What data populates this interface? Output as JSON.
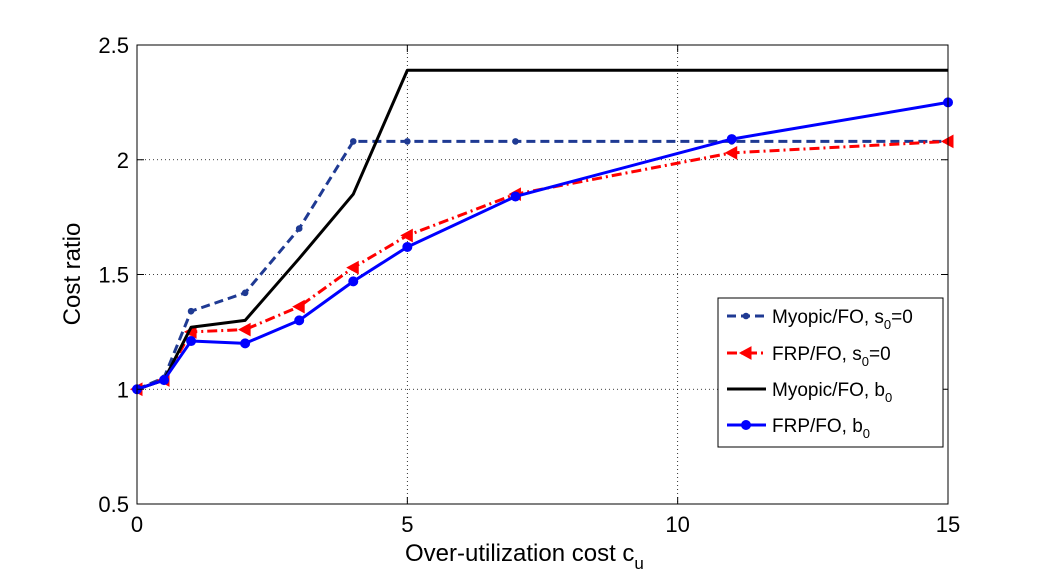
{
  "chart_data": {
    "type": "line",
    "title": "",
    "xlabel": "Over-utilization cost c",
    "xlabel_subscript": "u",
    "ylabel": "Cost ratio",
    "xlim": [
      0,
      15
    ],
    "ylim": [
      0.5,
      2.5
    ],
    "xticks": [
      0,
      5,
      10,
      15
    ],
    "yticks": [
      0.5,
      1,
      1.5,
      2,
      2.5
    ],
    "xtick_labels": [
      "0",
      "5",
      "10",
      "15"
    ],
    "ytick_labels": [
      "0.5",
      "1",
      "1.5",
      "2",
      "2.5"
    ],
    "grid": true,
    "legend_position": "right",
    "series": [
      {
        "name": "Myopic/FO, s",
        "name_subscript": "0",
        "name_suffix": "=0",
        "color": "#1f3a93",
        "line_style": "dashed",
        "marker": "dot",
        "x": [
          0,
          0.5,
          1,
          2,
          3,
          4,
          5,
          7,
          11,
          15
        ],
        "y": [
          1.0,
          1.05,
          1.34,
          1.42,
          1.7,
          2.08,
          2.08,
          2.08,
          2.08,
          2.08
        ]
      },
      {
        "name": "FRP/FO, s",
        "name_subscript": "0",
        "name_suffix": "=0",
        "color": "#ff0000",
        "line_style": "dashdot",
        "marker": "left-triangle",
        "x": [
          0,
          0.5,
          1,
          2,
          3,
          4,
          5,
          7,
          11,
          15
        ],
        "y": [
          1.0,
          1.04,
          1.25,
          1.26,
          1.36,
          1.53,
          1.67,
          1.85,
          2.03,
          2.08
        ]
      },
      {
        "name": "Myopic/FO, b",
        "name_subscript": "0",
        "name_suffix": "",
        "color": "#000000",
        "line_style": "solid",
        "marker": "none",
        "x": [
          0,
          0.5,
          1,
          2,
          3,
          4,
          5,
          7,
          11,
          15
        ],
        "y": [
          1.0,
          1.04,
          1.27,
          1.3,
          1.57,
          1.85,
          2.39,
          2.39,
          2.39,
          2.39
        ]
      },
      {
        "name": "FRP/FO, b",
        "name_subscript": "0",
        "name_suffix": "",
        "color": "#0000ff",
        "line_style": "solid",
        "marker": "circle",
        "x": [
          0,
          0.5,
          1,
          2,
          3,
          4,
          5,
          7,
          11,
          15
        ],
        "y": [
          1.0,
          1.04,
          1.21,
          1.2,
          1.3,
          1.47,
          1.62,
          1.84,
          2.09,
          2.25
        ]
      }
    ]
  }
}
